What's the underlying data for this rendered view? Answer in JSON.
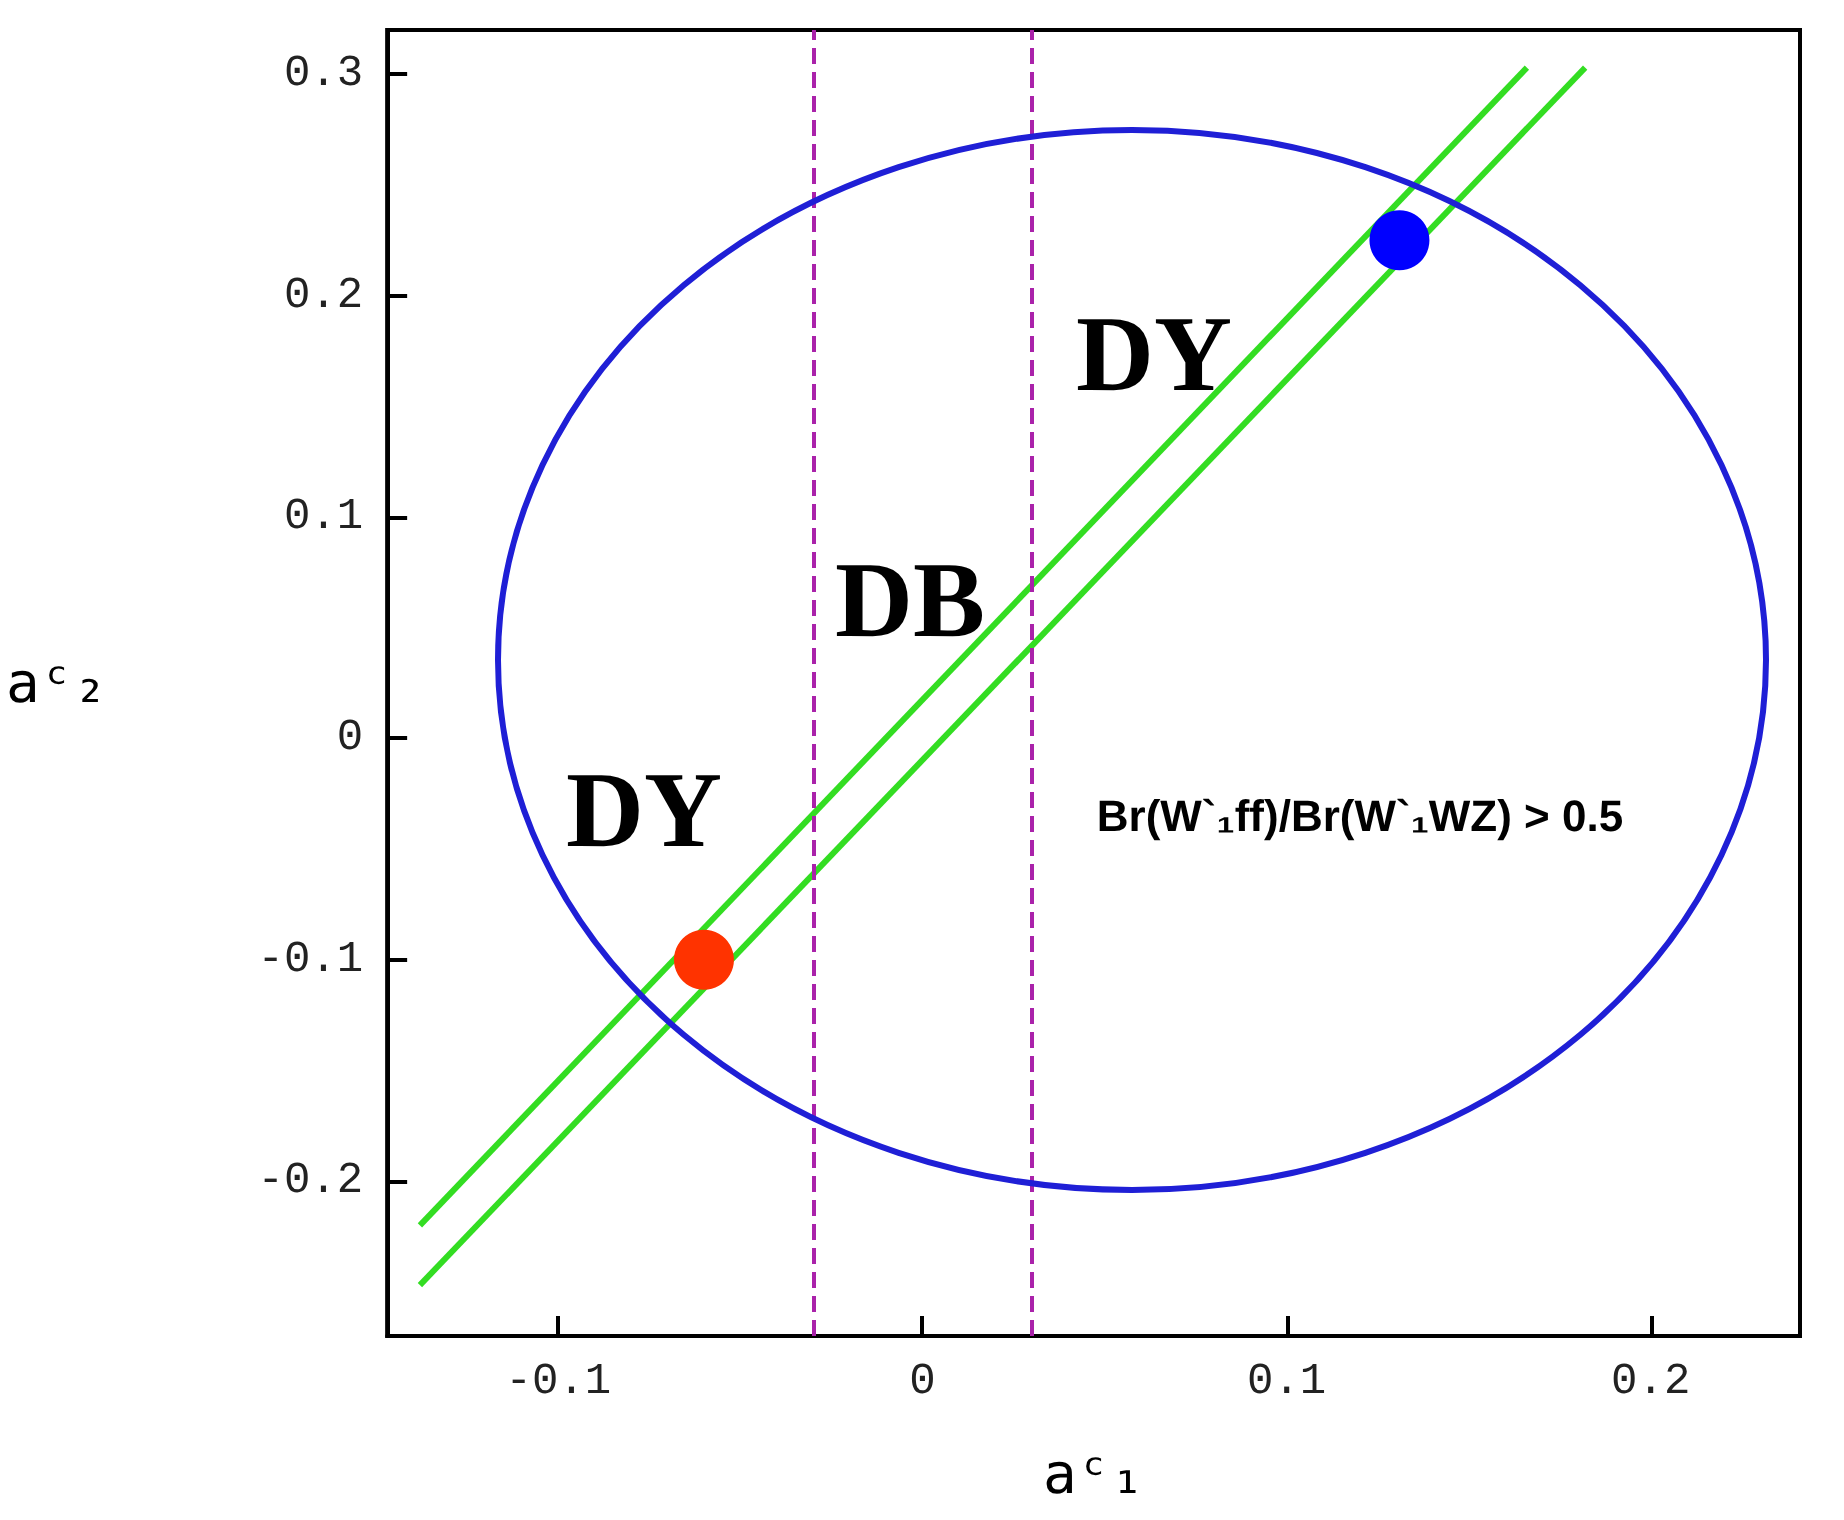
{
  "chart_data": {
    "type": "line",
    "xlabel": "aᶜ₁",
    "ylabel": "aᶜ₂",
    "xlim": [
      -0.147,
      0.241
    ],
    "ylim": [
      -0.27,
      0.32
    ],
    "xticks": [
      -0.1,
      0,
      0.1,
      0.2
    ],
    "yticks": [
      -0.2,
      -0.1,
      0,
      0.1,
      0.2,
      0.3
    ],
    "grid": false,
    "series": [
      {
        "color": "#33dd22",
        "marker": "none",
        "x": [
          -0.138,
          0.166
        ],
        "values": [
          -0.22,
          0.303
        ]
      },
      {
        "color": "#33dd22",
        "marker": "none",
        "x": [
          -0.138,
          0.182
        ],
        "values": [
          -0.247,
          0.303
        ]
      },
      {
        "type": "scatter",
        "color": "#ff3300",
        "marker": "circle",
        "x": [
          -0.06
        ],
        "values": [
          -0.1
        ]
      },
      {
        "type": "scatter",
        "color": "#0000ff",
        "marker": "circle",
        "x": [
          0.131
        ],
        "values": [
          0.225
        ]
      }
    ],
    "ref_lines": [
      {
        "axis": "x",
        "value": -0.03,
        "color": "#aa22aa",
        "line_style": "dashed"
      },
      {
        "axis": "x",
        "value": 0.03,
        "color": "#aa22aa",
        "line_style": "dashed"
      }
    ],
    "annotations": [
      "DY",
      "DB",
      "DY",
      "Br(W`₁ff)/Br(W`₁WZ) > 0.5"
    ]
  }
}
